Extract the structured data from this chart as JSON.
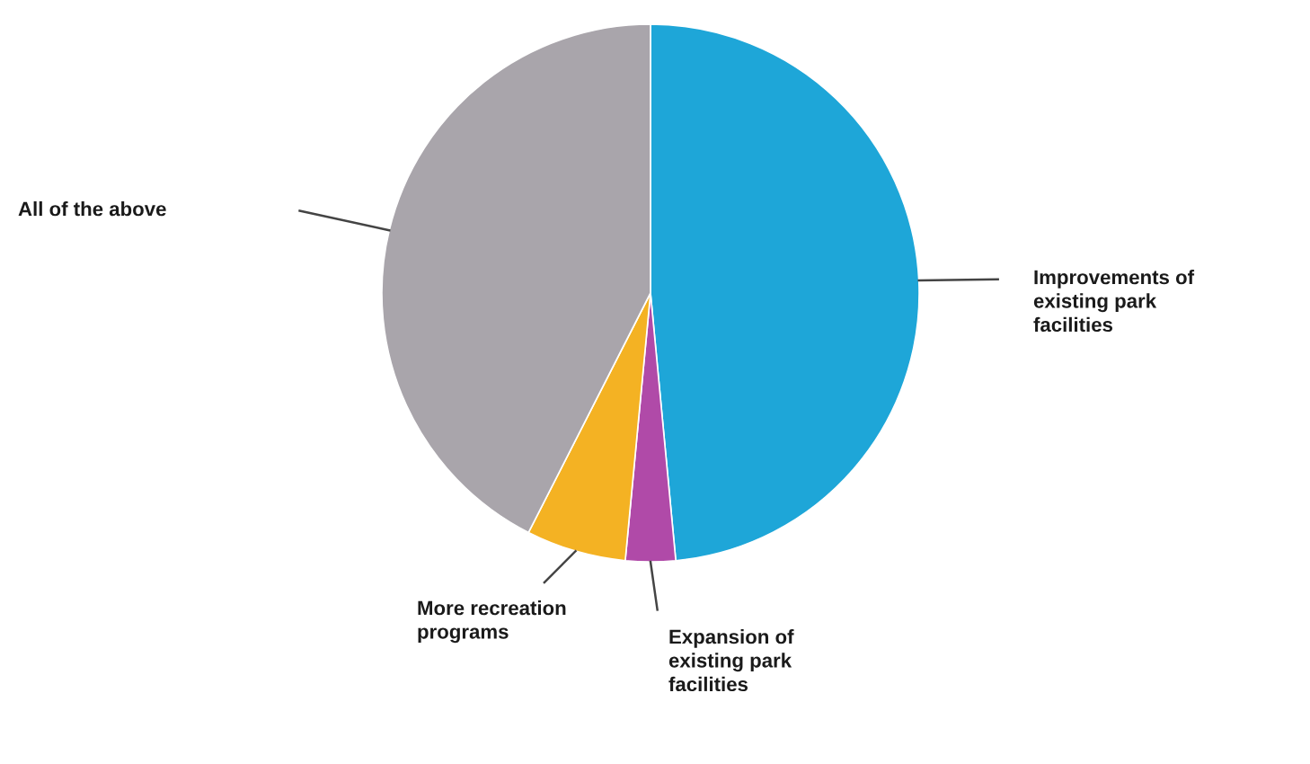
{
  "chart_data": {
    "type": "pie",
    "categories": [
      "Improvements of existing park facilities",
      "Expansion of existing park facilities",
      "More recreation programs",
      "All of the above"
    ],
    "values": [
      48.5,
      3,
      6,
      42.5
    ],
    "colors": [
      "#1ea6d8",
      "#b04aa8",
      "#f4b223",
      "#a9a5ab"
    ]
  }
}
